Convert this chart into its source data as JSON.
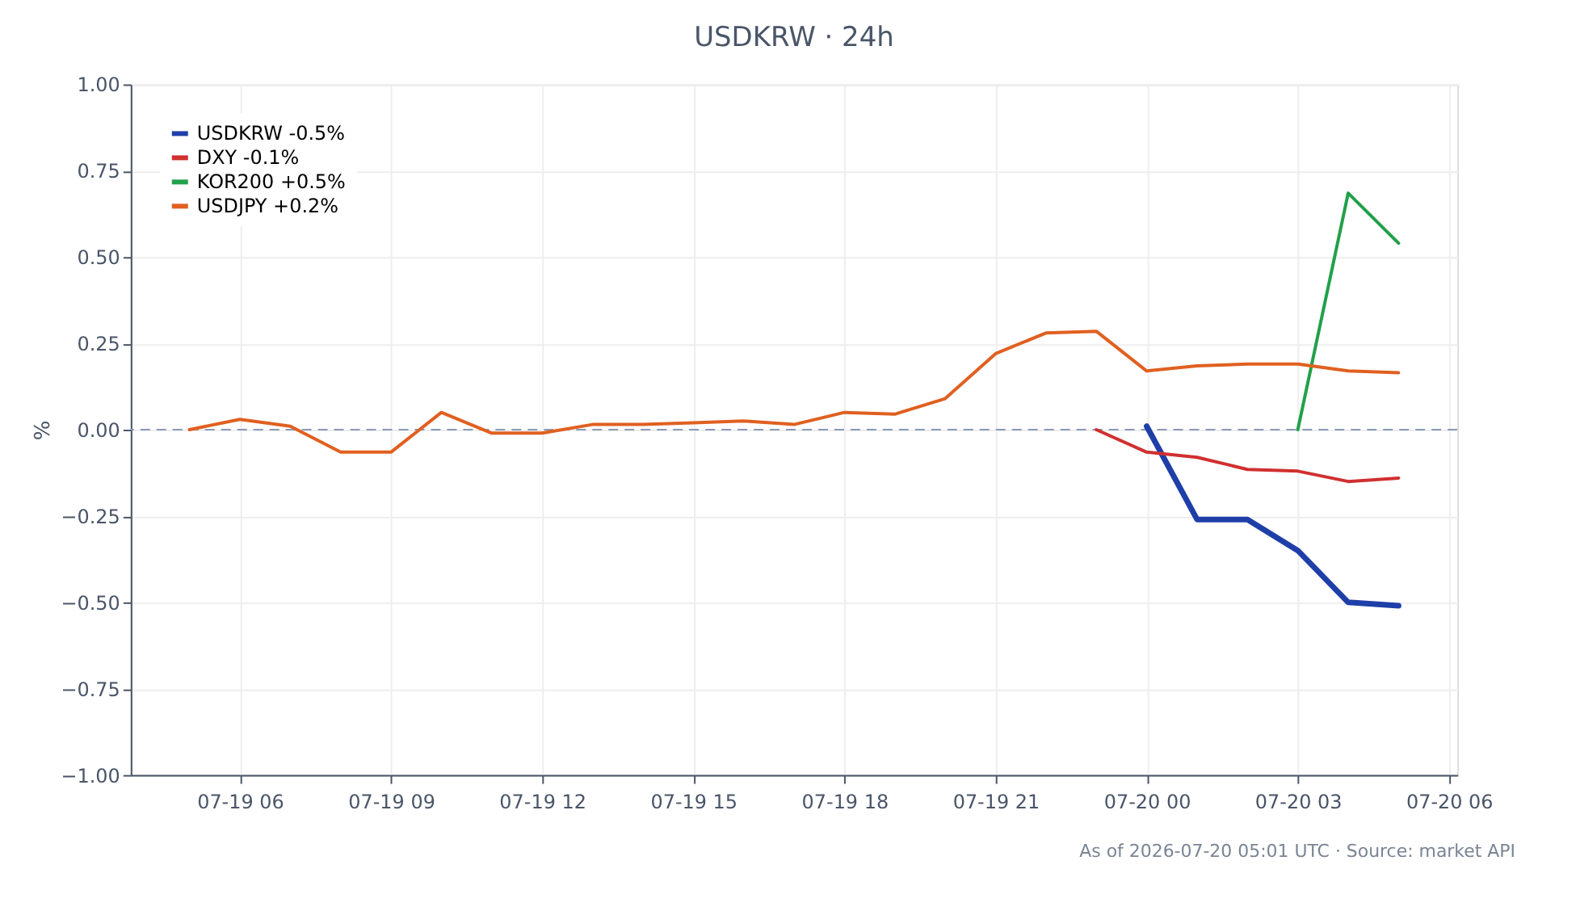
{
  "chart_data": {
    "type": "line",
    "title": "USDKRW · 24h",
    "ylabel": "%",
    "series": [
      {
        "name": "USDKRW -0.5%",
        "color": "#1f3fa8",
        "x": [
          "2026-07-20T00:00",
          "2026-07-20T01:00",
          "2026-07-20T02:00",
          "2026-07-20T03:00",
          "2026-07-20T04:00",
          "2026-07-20T05:00"
        ],
        "values": [
          0.01,
          -0.26,
          -0.26,
          -0.35,
          -0.5,
          -0.51
        ]
      },
      {
        "name": "DXY -0.1%",
        "color": "#d03030",
        "x": [
          "2026-07-19T23:00",
          "2026-07-20T00:00",
          "2026-07-20T01:00",
          "2026-07-20T02:00",
          "2026-07-20T03:00",
          "2026-07-20T04:00",
          "2026-07-20T05:00"
        ],
        "values": [
          0.0,
          -0.065,
          -0.08,
          -0.115,
          -0.12,
          -0.15,
          -0.14
        ]
      },
      {
        "name": "KOR200 +0.5%",
        "color": "#22a04a",
        "x": [
          "2026-07-20T03:00",
          "2026-07-20T04:00",
          "2026-07-20T05:00"
        ],
        "values": [
          0.0,
          0.685,
          0.54
        ]
      },
      {
        "name": "USDJPY +0.2%",
        "color": "#e06020",
        "x": [
          "2026-07-19T05:00",
          "2026-07-19T06:00",
          "2026-07-19T07:00",
          "2026-07-19T08:00",
          "2026-07-19T09:00",
          "2026-07-19T10:00",
          "2026-07-19T11:00",
          "2026-07-19T12:00",
          "2026-07-19T13:00",
          "2026-07-19T14:00",
          "2026-07-19T15:00",
          "2026-07-19T16:00",
          "2026-07-19T17:00",
          "2026-07-19T18:00",
          "2026-07-19T19:00",
          "2026-07-19T20:00",
          "2026-07-19T21:00",
          "2026-07-19T22:00",
          "2026-07-19T23:00",
          "2026-07-20T00:00",
          "2026-07-20T01:00",
          "2026-07-20T02:00",
          "2026-07-20T03:00",
          "2026-07-20T04:00",
          "2026-07-20T05:00"
        ],
        "values": [
          0.0,
          0.03,
          0.01,
          -0.065,
          -0.065,
          0.05,
          -0.01,
          -0.01,
          0.015,
          0.015,
          0.02,
          0.025,
          0.015,
          0.05,
          0.045,
          0.09,
          0.22,
          0.28,
          0.285,
          0.17,
          0.185,
          0.19,
          0.19,
          0.17,
          0.165
        ]
      }
    ],
    "xlim": [
      "2026-07-19T03:50",
      "2026-07-20T06:10"
    ],
    "xticks": [
      {
        "value": "2026-07-19T06:00",
        "label": "07-19 06"
      },
      {
        "value": "2026-07-19T09:00",
        "label": "07-19 09"
      },
      {
        "value": "2026-07-19T12:00",
        "label": "07-19 12"
      },
      {
        "value": "2026-07-19T15:00",
        "label": "07-19 15"
      },
      {
        "value": "2026-07-19T18:00",
        "label": "07-19 18"
      },
      {
        "value": "2026-07-19T21:00",
        "label": "07-19 21"
      },
      {
        "value": "2026-07-20T00:00",
        "label": "07-20 00"
      },
      {
        "value": "2026-07-20T03:00",
        "label": "07-20 03"
      },
      {
        "value": "2026-07-20T06:00",
        "label": "07-20 06"
      }
    ],
    "ylim": [
      -1.0,
      1.0
    ],
    "yticks": [
      {
        "value": -1,
        "label": "−1.00"
      },
      {
        "value": -0.75,
        "label": "−0.75"
      },
      {
        "value": -0.5,
        "label": "−0.50"
      },
      {
        "value": -0.25,
        "label": "−0.25"
      },
      {
        "value": 0,
        "label": "0.00"
      },
      {
        "value": 0.25,
        "label": "0.25"
      },
      {
        "value": 0.5,
        "label": "0.50"
      },
      {
        "value": 0.75,
        "label": "0.75"
      },
      {
        "value": 1,
        "label": "1.00"
      }
    ],
    "ref_lines": [
      {
        "axis": "y",
        "value": 0,
        "color": "#8a9ab8",
        "line_style": "dashed"
      }
    ],
    "grid": true,
    "legend": "top left",
    "line_style": "solid",
    "marker": "none",
    "annotations": [
      "As of 2026-07-20 05:01 UTC · Source: market API"
    ]
  }
}
